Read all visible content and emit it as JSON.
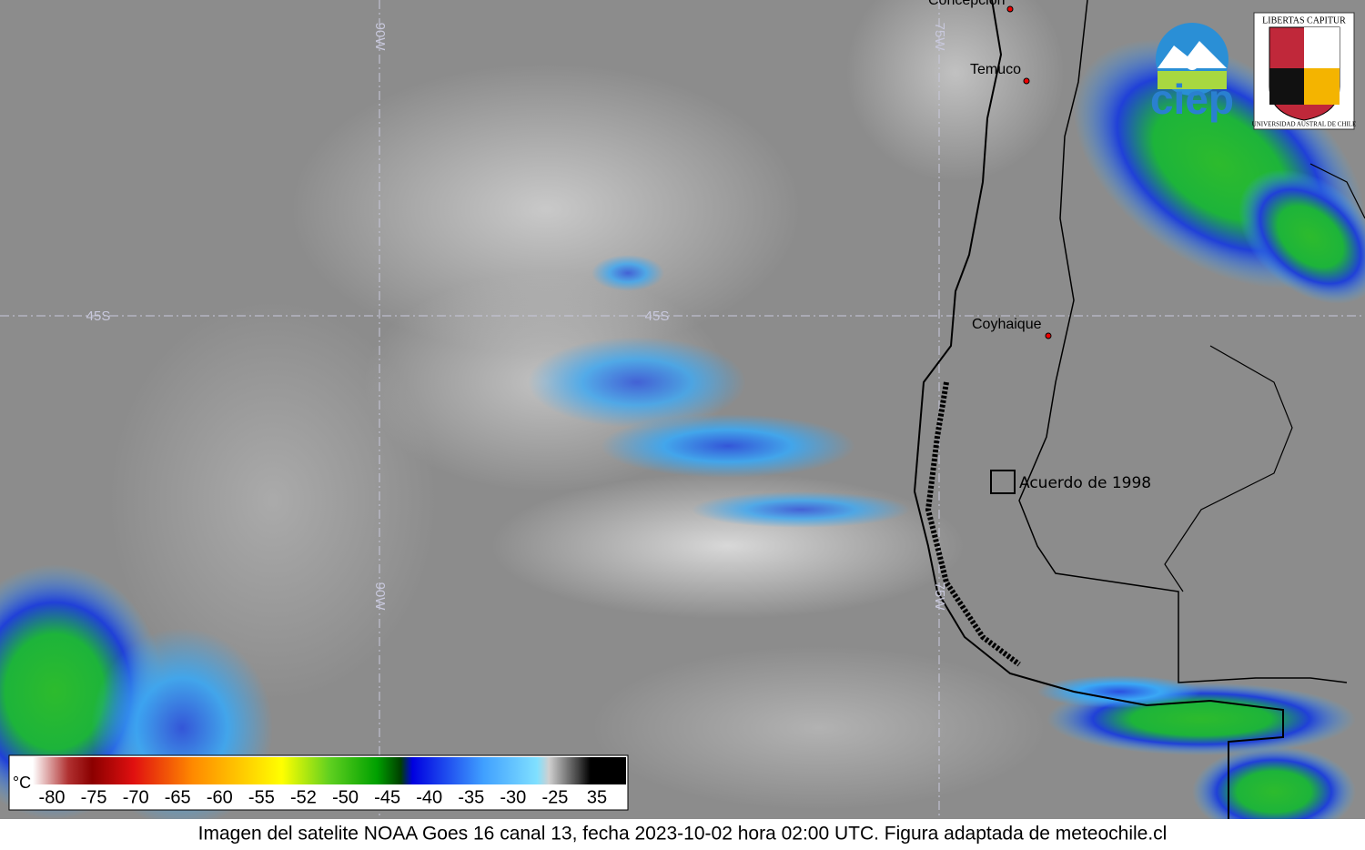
{
  "map": {
    "cities": [
      "Concepción",
      "Temuco",
      "Coyhaique"
    ],
    "annotation": "Acuerdo de 1998",
    "grid_labels": {
      "lon_west": "90W",
      "lon_east": "75W",
      "lat": "45S"
    },
    "legend": {
      "unit": "°C",
      "ticks": [
        "-80",
        "-75",
        "-70",
        "-65",
        "-60",
        "-55",
        "-52",
        "-50",
        "-45",
        "-40",
        "-35",
        "-30",
        "-25",
        "35"
      ]
    },
    "logos": {
      "ciep": "ciep",
      "motto": "LIBERTAS CAPITUR",
      "university": "UNIVERSIDAD AUSTRAL DE CHILE"
    },
    "caption": "Imagen del satelite NOAA Goes 16 canal 13, fecha 2023-10-02 hora 02:00 UTC. Figura adaptada de meteochile.cl"
  }
}
